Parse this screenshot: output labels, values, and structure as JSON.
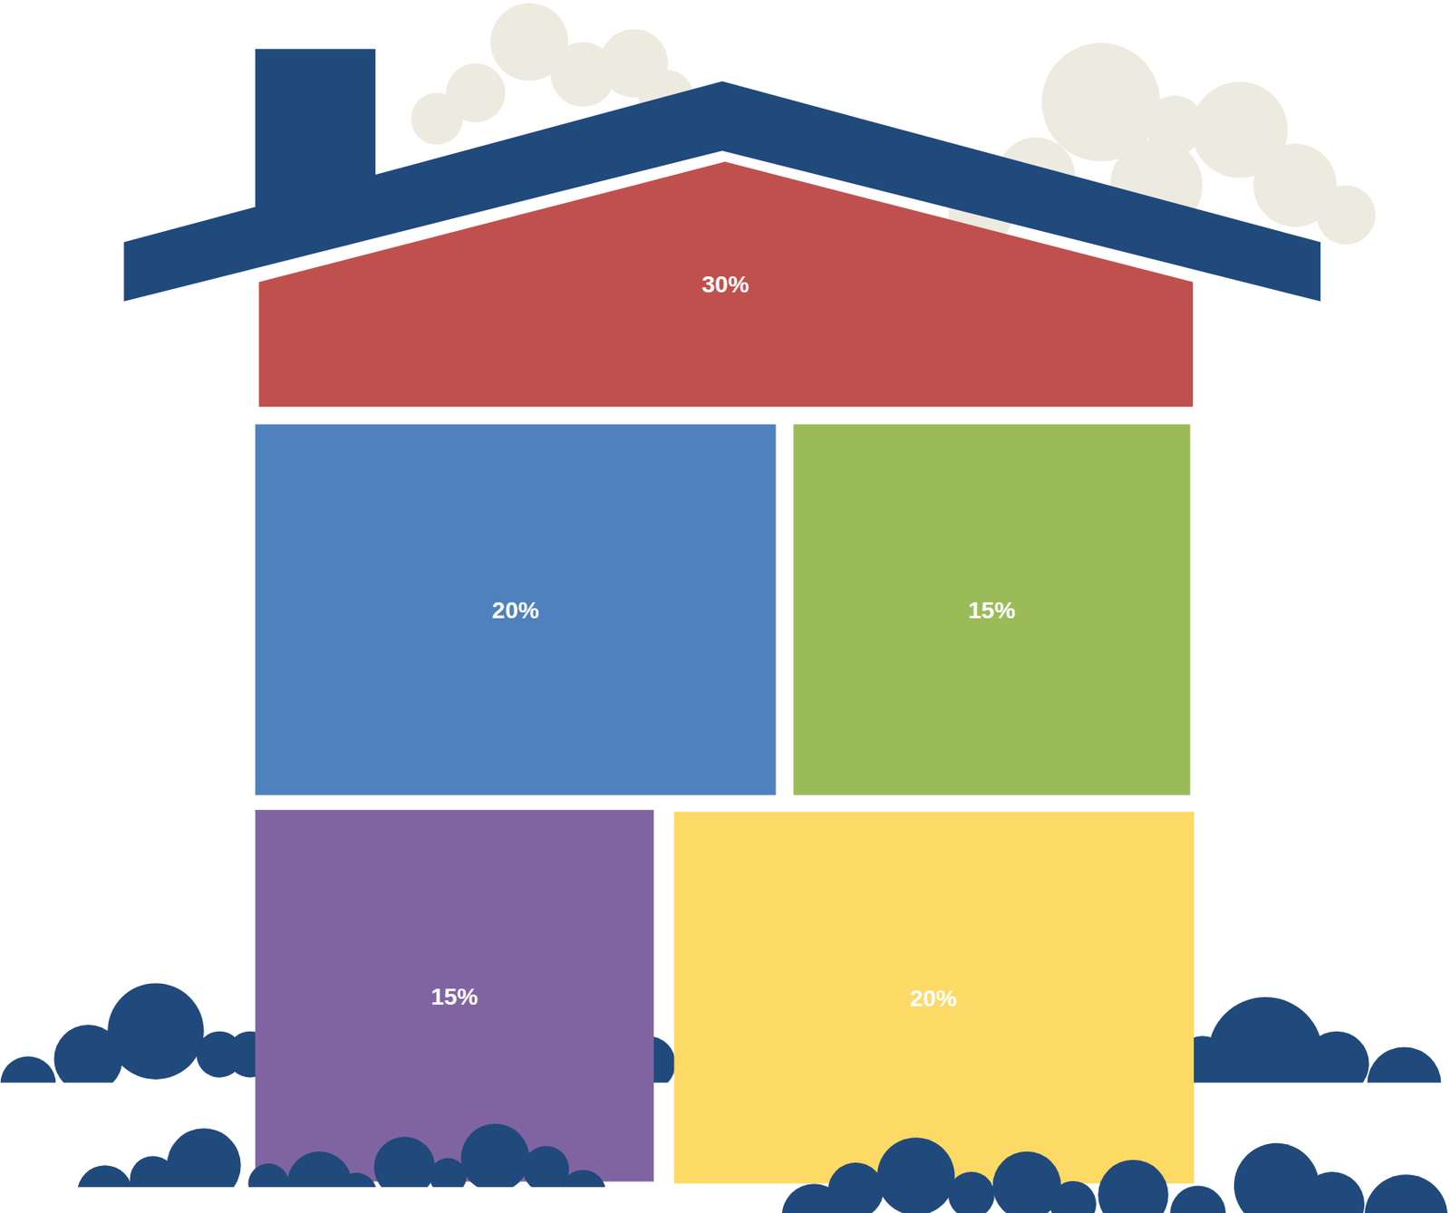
{
  "chart_data": {
    "type": "house",
    "values": [
      30,
      20,
      15,
      15,
      20
    ],
    "value_labels": [
      "30%",
      "20%",
      "15%",
      "15%",
      "20%"
    ],
    "colors": [
      "#c0504d",
      "#4f81bd",
      "#9bbb59",
      "#8064a2",
      "#fdd966"
    ],
    "data_labels": true
  }
}
